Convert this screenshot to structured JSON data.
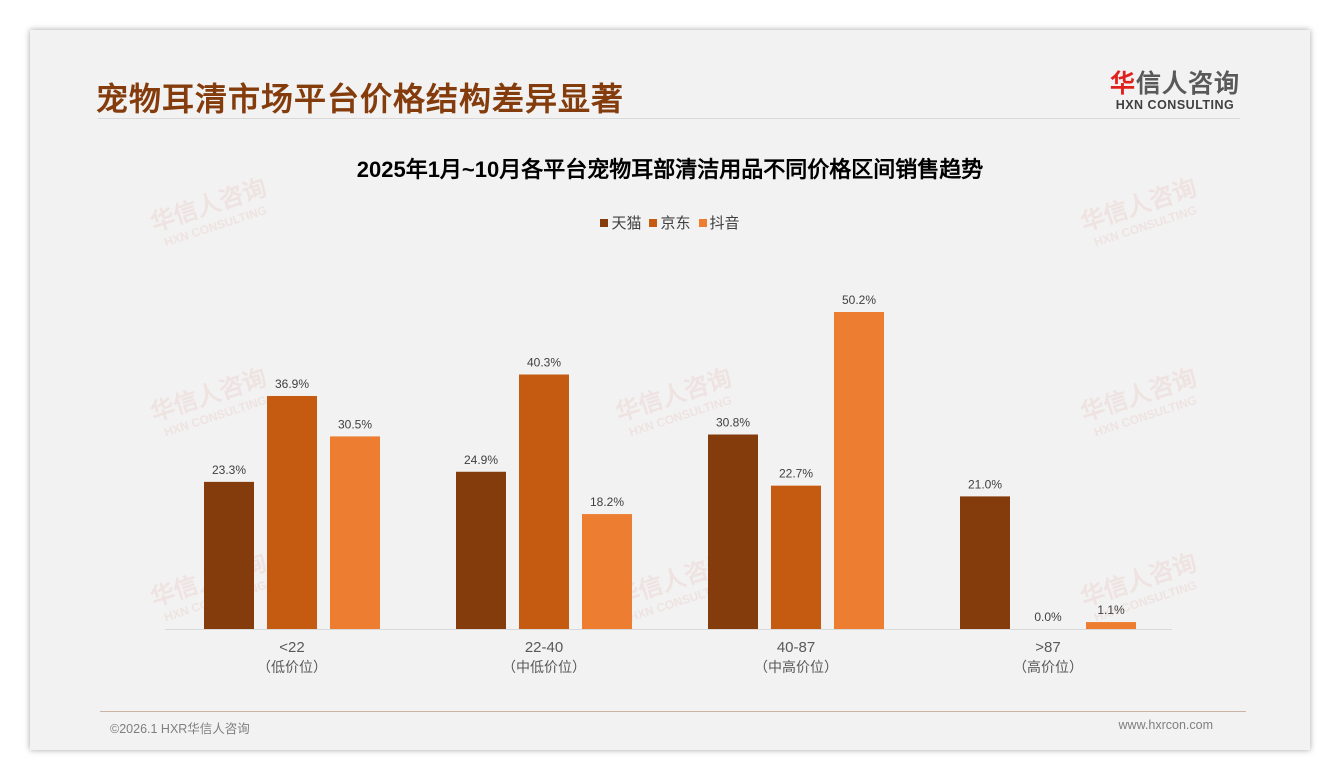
{
  "header": {
    "title": "宠物耳清市场平台价格结构差异显著",
    "logo_cn_first": "华",
    "logo_cn_rest": "信人咨询",
    "logo_en": "HXN CONSULTING"
  },
  "watermark": {
    "cn": "华信人咨询",
    "en": "HXN CONSULTING"
  },
  "footer": {
    "left": "©2026.1 HXR华信人咨询",
    "right": "www.hxrcon.com"
  },
  "chart_data": {
    "type": "bar",
    "title": "2025年1月~10月各平台宠物耳部清洁用品不同价格区间销售趋势",
    "categories": [
      "<22",
      "22-40",
      "40-87",
      ">87"
    ],
    "category_sublabels": [
      "（低价位）",
      "（中低价位）",
      "（中高价位）",
      "（高价位）"
    ],
    "series": [
      {
        "name": "天猫",
        "color": "#843c0c",
        "values": [
          23.3,
          24.9,
          30.8,
          21.0
        ],
        "labels": [
          "23.3%",
          "24.9%",
          "30.8%",
          "21.0%"
        ]
      },
      {
        "name": "京东",
        "color": "#c55a11",
        "values": [
          36.9,
          40.3,
          22.7,
          0.0
        ],
        "labels": [
          "36.9%",
          "40.3%",
          "22.7%",
          "0.0%"
        ]
      },
      {
        "name": "抖音",
        "color": "#ed7d31",
        "values": [
          30.5,
          18.2,
          50.2,
          1.1
        ],
        "labels": [
          "30.5%",
          "18.2%",
          "50.2%",
          "1.1%"
        ]
      }
    ],
    "ylim": [
      0,
      50.2
    ],
    "grid": false,
    "legend": "top-center",
    "xlabel": "",
    "ylabel": ""
  }
}
